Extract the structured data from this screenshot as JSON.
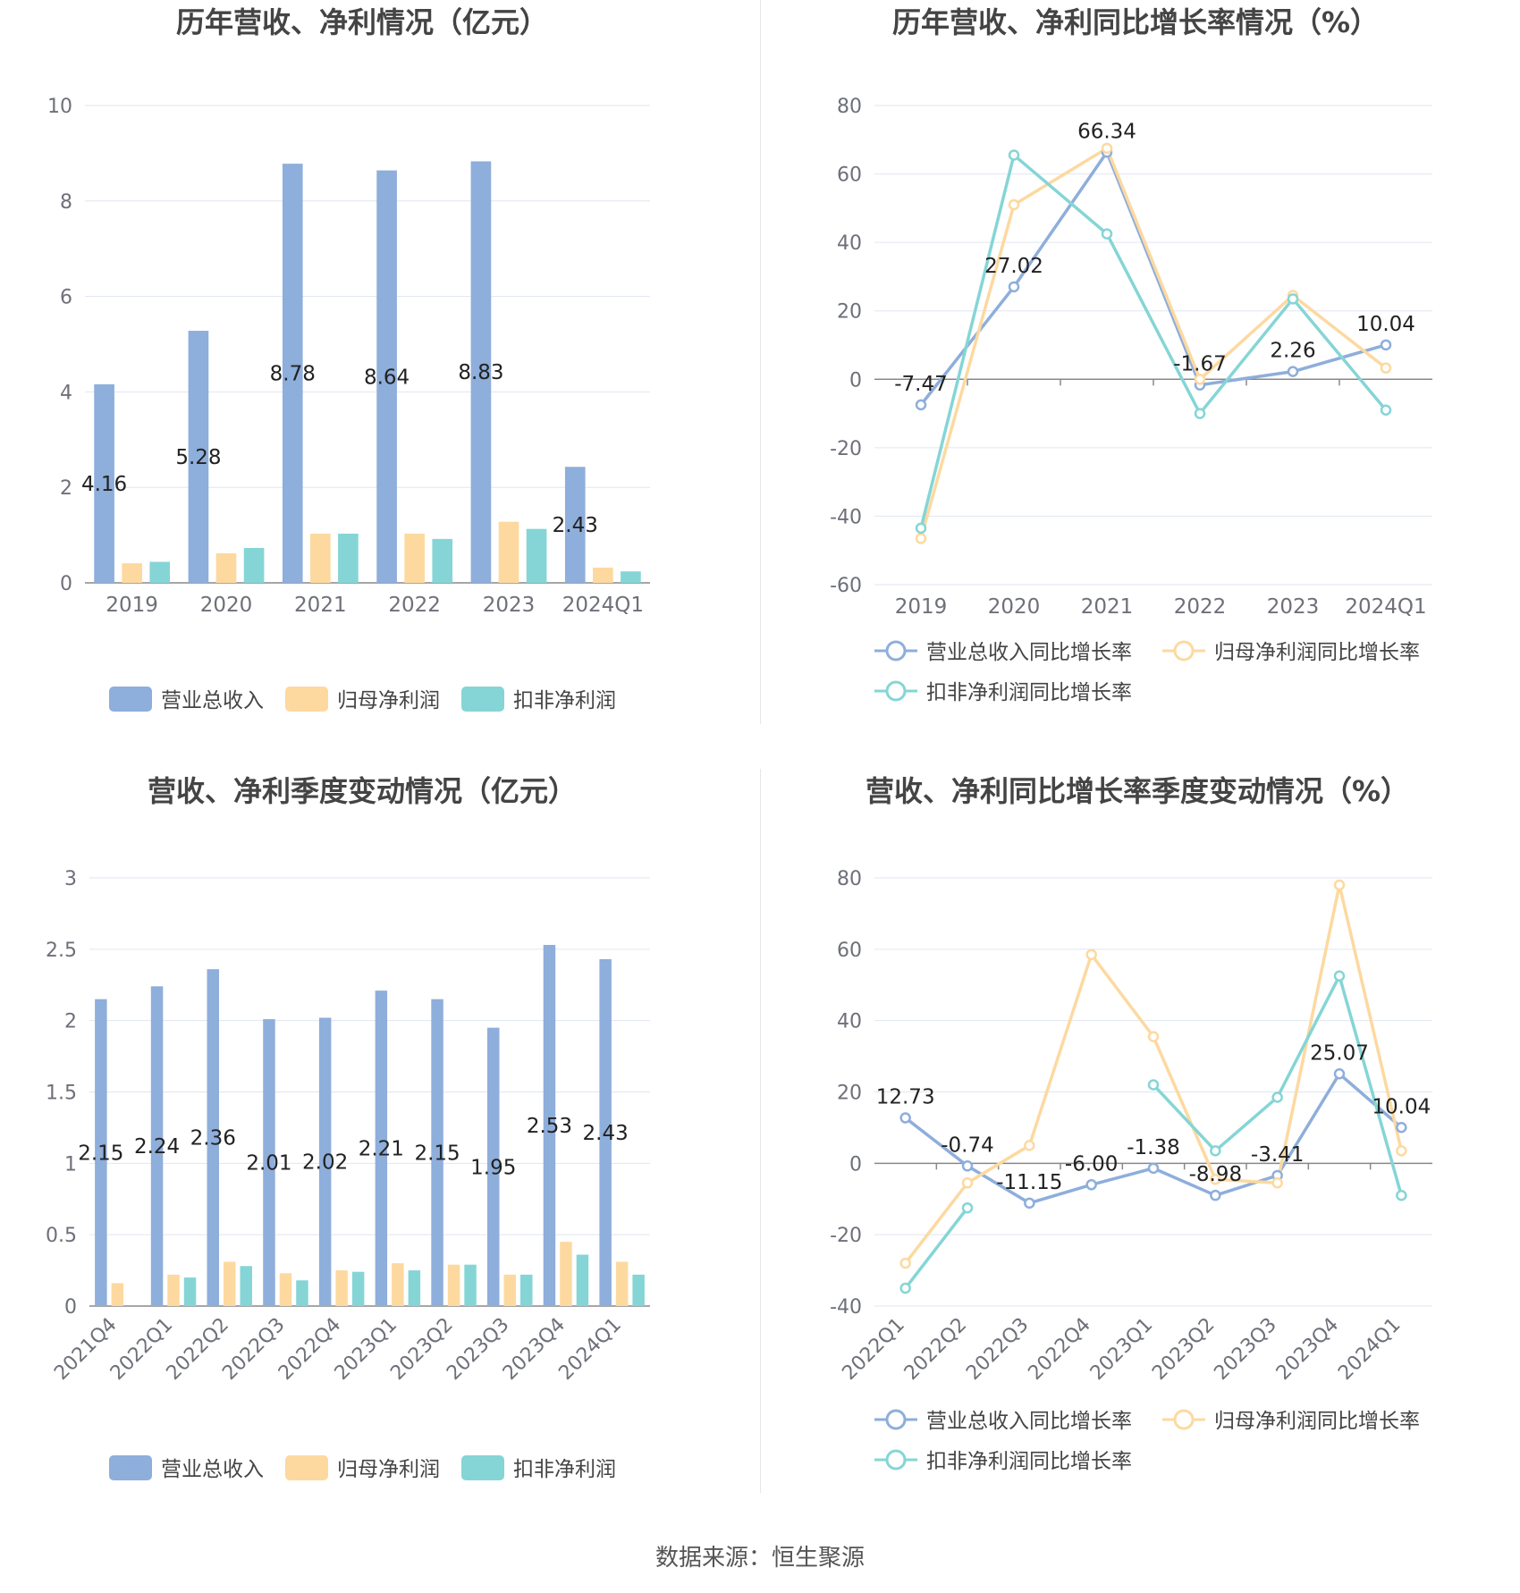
{
  "chart_data": [
    {
      "type": "bar",
      "title": "历年营收、净利情况（亿元）",
      "categories": [
        "2019",
        "2020",
        "2021",
        "2022",
        "2023",
        "2024Q1"
      ],
      "ylim": [
        0,
        10
      ],
      "yticks": [
        0,
        2,
        4,
        6,
        8,
        10
      ],
      "series": [
        {
          "name": "营业总收入",
          "color": "#8eaedb",
          "values": [
            4.16,
            5.28,
            8.78,
            8.64,
            8.83,
            2.43
          ],
          "labels": [
            "4.16",
            "5.28",
            "8.78",
            "8.64",
            "8.83",
            "2.43"
          ]
        },
        {
          "name": "归母净利润",
          "color": "#fdd9a0",
          "values": [
            0.41,
            0.62,
            1.03,
            1.03,
            1.28,
            0.32
          ]
        },
        {
          "name": "扣非净利润",
          "color": "#85d5d6",
          "values": [
            0.44,
            0.73,
            1.03,
            0.92,
            1.13,
            0.24
          ]
        }
      ],
      "grid": true,
      "legend": "bottom"
    },
    {
      "type": "line",
      "title": "历年营收、净利同比增长率情况（%）",
      "categories": [
        "2019",
        "2020",
        "2021",
        "2022",
        "2023",
        "2024Q1"
      ],
      "ylim": [
        -60,
        80
      ],
      "yticks": [
        -60,
        -40,
        -20,
        0,
        20,
        40,
        60,
        80
      ],
      "series": [
        {
          "name": "营业总收入同比增长率",
          "color": "#8eaedb",
          "values": [
            -7.47,
            27.02,
            66.34,
            -1.67,
            2.26,
            10.04
          ],
          "labels": [
            "-7.47",
            "27.02",
            "66.34",
            "-1.67",
            "2.26",
            "10.04"
          ]
        },
        {
          "name": "归母净利润同比增长率",
          "color": "#fdd9a0",
          "values": [
            -46.5,
            51.0,
            67.5,
            0.0,
            24.5,
            3.3
          ]
        },
        {
          "name": "扣非净利润同比增长率",
          "color": "#85d5d6",
          "values": [
            -43.5,
            65.5,
            42.5,
            -10.0,
            23.5,
            -9.0
          ]
        }
      ],
      "grid": true,
      "legend": "bottom"
    },
    {
      "type": "bar",
      "title": "营收、净利季度变动情况（亿元）",
      "categories": [
        "2021Q4",
        "2022Q1",
        "2022Q2",
        "2022Q3",
        "2022Q4",
        "2023Q1",
        "2023Q2",
        "2023Q3",
        "2023Q4",
        "2024Q1"
      ],
      "ylim": [
        0,
        3
      ],
      "yticks": [
        "0",
        "0.5",
        "1",
        "1.5",
        "2",
        "2.5",
        "3"
      ],
      "series": [
        {
          "name": "营业总收入",
          "color": "#8eaedb",
          "values": [
            2.15,
            2.24,
            2.36,
            2.01,
            2.02,
            2.21,
            2.15,
            1.95,
            2.53,
            2.43
          ],
          "labels": [
            "2.15",
            "2.24",
            "2.36",
            "2.01",
            "2.02",
            "2.21",
            "2.15",
            "1.95",
            "2.53",
            "2.43"
          ]
        },
        {
          "name": "归母净利润",
          "color": "#fdd9a0",
          "values": [
            0.16,
            0.22,
            0.31,
            0.23,
            0.25,
            0.3,
            0.29,
            0.22,
            0.45,
            0.31
          ]
        },
        {
          "name": "扣非净利润",
          "color": "#85d5d6",
          "values": [
            0.0,
            0.2,
            0.28,
            0.18,
            0.24,
            0.25,
            0.29,
            0.22,
            0.36,
            0.22
          ]
        }
      ],
      "grid": true,
      "legend": "bottom"
    },
    {
      "type": "line",
      "title": "营收、净利同比增长率季度变动情况（%）",
      "categories": [
        "2022Q1",
        "2022Q2",
        "2022Q3",
        "2022Q4",
        "2023Q1",
        "2023Q2",
        "2023Q3",
        "2023Q4",
        "2024Q1"
      ],
      "ylim": [
        -40,
        80
      ],
      "yticks": [
        -40,
        -20,
        0,
        20,
        40,
        60,
        80
      ],
      "series": [
        {
          "name": "营业总收入同比增长率",
          "color": "#8eaedb",
          "values": [
            12.73,
            -0.74,
            -11.15,
            -6.0,
            -1.38,
            -8.98,
            -3.41,
            25.07,
            10.04
          ],
          "labels": [
            "12.73",
            "-0.74",
            "-11.15",
            "-6.00",
            "-1.38",
            "-8.98",
            "-3.41",
            "25.07",
            "10.04"
          ]
        },
        {
          "name": "归母净利润同比增长率",
          "color": "#fdd9a0",
          "values": [
            -28.0,
            -5.5,
            5.0,
            58.5,
            35.5,
            -4.5,
            -5.5,
            78.0,
            3.5
          ]
        },
        {
          "name": "扣非净利润同比增长率",
          "color": "#85d5d6",
          "values": [
            -35.0,
            -12.5,
            null,
            null,
            22.0,
            3.5,
            18.5,
            52.5,
            -9.0
          ]
        }
      ],
      "grid": true,
      "legend": "bottom"
    }
  ],
  "footer": {
    "source": "数据来源：恒生聚源"
  }
}
